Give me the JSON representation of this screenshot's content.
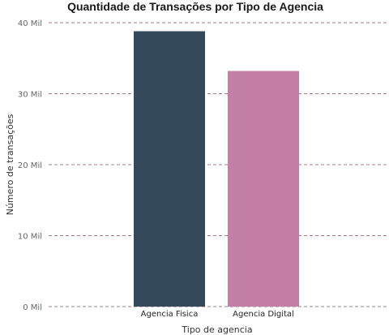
{
  "chart_data": {
    "type": "bar",
    "title": "Quantidade de Transações por Tipo de Agencia",
    "xlabel": "Tipo de agencia",
    "ylabel": "Número de transações",
    "categories": [
      "Agencia Fisica",
      "Agencia Digital"
    ],
    "values": [
      38800,
      33200
    ],
    "colors": [
      "#34495a",
      "#c47fa6"
    ],
    "ylim": [
      0,
      40000
    ],
    "yticks": [
      0,
      10000,
      20000,
      30000,
      40000
    ],
    "ytick_labels": [
      "0 Mil",
      "10 Mil",
      "20 Mil",
      "30 Mil",
      "40 Mil"
    ],
    "grid": true
  }
}
